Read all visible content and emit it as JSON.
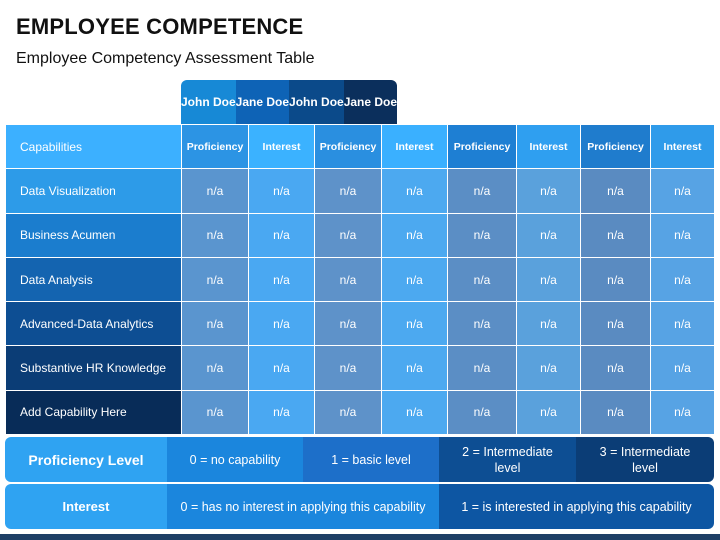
{
  "title": "EMPLOYEE COMPETENCE",
  "subtitle": "Employee Competency Assessment Table",
  "employees": [
    "John Doe",
    "Jane Doe",
    "John Doe",
    "Jane Doe"
  ],
  "table": {
    "first_header": "Capabilities",
    "sub_headers": [
      "Proficiency",
      "Interest",
      "Proficiency",
      "Interest",
      "Proficiency",
      "Interest",
      "Proficiency",
      "Interest"
    ],
    "rows": [
      {
        "label": "Data Visualization",
        "cells": [
          "n/a",
          "n/a",
          "n/a",
          "n/a",
          "n/a",
          "n/a",
          "n/a",
          "n/a"
        ]
      },
      {
        "label": "Business Acumen",
        "cells": [
          "n/a",
          "n/a",
          "n/a",
          "n/a",
          "n/a",
          "n/a",
          "n/a",
          "n/a"
        ]
      },
      {
        "label": "Data Analysis",
        "cells": [
          "n/a",
          "n/a",
          "n/a",
          "n/a",
          "n/a",
          "n/a",
          "n/a",
          "n/a"
        ]
      },
      {
        "label": "Advanced-Data Analytics",
        "cells": [
          "n/a",
          "n/a",
          "n/a",
          "n/a",
          "n/a",
          "n/a",
          "n/a",
          "n/a"
        ]
      },
      {
        "label": "Substantive HR Knowledge",
        "cells": [
          "n/a",
          "n/a",
          "n/a",
          "n/a",
          "n/a",
          "n/a",
          "n/a",
          "n/a"
        ]
      },
      {
        "label": "Add Capability Here",
        "cells": [
          "n/a",
          "n/a",
          "n/a",
          "n/a",
          "n/a",
          "n/a",
          "n/a",
          "n/a"
        ]
      }
    ]
  },
  "legend": {
    "proficiency": {
      "label": "Proficiency Level",
      "levels": [
        "0 = no capability",
        "1 = basic level",
        "2 = Intermediate level",
        "3 = Intermediate level"
      ]
    },
    "interest": {
      "label": "Interest",
      "levels": [
        "0 = has no interest in applying this capability",
        "1 = is interested in applying this capability"
      ]
    }
  },
  "colors": {
    "name_headers": [
      "#1789d6",
      "#0e63b6",
      "#0b4a8a",
      "#0b2f5c"
    ],
    "row_labels": [
      "#2d9be8",
      "#1b7dce",
      "#1464b0",
      "#0d4e93",
      "#0b3d76",
      "#082c58"
    ],
    "cell_dark": "#5b8ec5",
    "cell_light": "#4ba6f0",
    "cell_header_light": "#3cb0ff",
    "legend_key": "#2fa3f2"
  }
}
